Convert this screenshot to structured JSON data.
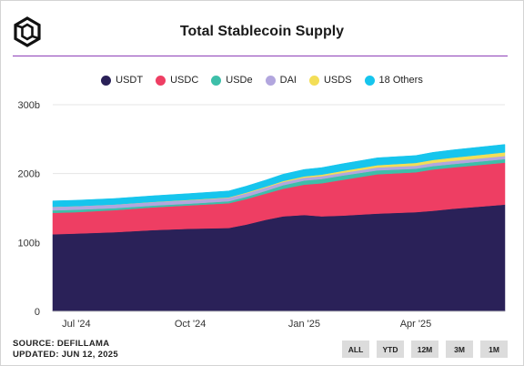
{
  "header": {
    "title": "Total Stablecoin Supply"
  },
  "footer": {
    "source": "SOURCE: DEFILLAMA",
    "updated": "UPDATED: JUN 12, 2025"
  },
  "range_buttons": [
    "ALL",
    "YTD",
    "12M",
    "3M",
    "1M"
  ],
  "chart_data": {
    "type": "area",
    "stacked": true,
    "title": "Total Stablecoin Supply",
    "y_unit": "billions USD",
    "ylim": [
      0,
      300
    ],
    "y_ticks": [
      0,
      100,
      200,
      300
    ],
    "y_tick_labels": [
      "0",
      "100b",
      "200b",
      "300b"
    ],
    "x_range": [
      "2024-06-12",
      "2025-06-12"
    ],
    "x_ticks": [
      {
        "label": "Jul '24",
        "date": "2024-07-01"
      },
      {
        "label": "Oct '24",
        "date": "2024-10-01"
      },
      {
        "label": "Jan '25",
        "date": "2025-01-01"
      },
      {
        "label": "Apr '25",
        "date": "2025-04-01"
      }
    ],
    "x": [
      "2024-06-12",
      "2024-07-01",
      "2024-08-01",
      "2024-09-01",
      "2024-10-01",
      "2024-11-01",
      "2024-11-15",
      "2024-12-01",
      "2024-12-15",
      "2025-01-01",
      "2025-01-15",
      "2025-02-01",
      "2025-03-01",
      "2025-04-01",
      "2025-04-15",
      "2025-05-01",
      "2025-06-12"
    ],
    "series": [
      {
        "name": "USDT",
        "color": "#2a2158",
        "values": [
          112,
          113,
          115,
          118,
          120,
          121,
          126,
          133,
          138,
          140,
          138,
          139,
          142,
          144,
          146,
          149,
          155
        ]
      },
      {
        "name": "USDC",
        "color": "#ee3e63",
        "values": [
          31,
          31,
          32,
          33,
          34,
          36,
          37,
          38,
          40,
          44,
          48,
          52,
          57,
          58,
          60,
          60,
          61
        ]
      },
      {
        "name": "USDe",
        "color": "#3dbfa9",
        "values": [
          3.7,
          3.6,
          2.9,
          2.6,
          2.5,
          2.9,
          3.3,
          4.0,
          5.2,
          5.9,
          6.1,
          6.2,
          5.7,
          5.1,
          4.9,
          4.8,
          5.1
        ]
      },
      {
        "name": "DAI",
        "color": "#b2a6de",
        "values": [
          5.2,
          5.2,
          5.2,
          5.1,
          5.0,
          5.0,
          5.0,
          4.9,
          4.6,
          4.3,
          4.1,
          3.9,
          4.2,
          4.4,
          4.6,
          4.6,
          4.5
        ]
      },
      {
        "name": "USDS",
        "color": "#f3de57",
        "values": [
          0,
          0,
          0,
          0.3,
          0.5,
          0.7,
          1.0,
          1.2,
          1.5,
          1.8,
          2.3,
          2.8,
          3.4,
          4.0,
          4.4,
          4.8,
          5.3
        ]
      },
      {
        "name": "18 Others",
        "color": "#16c5ed",
        "values": [
          8.5,
          8.6,
          8.8,
          8.9,
          9.1,
          9.2,
          9.4,
          9.6,
          9.8,
          10.0,
          10.2,
          10.4,
          10.6,
          10.8,
          11.0,
          11.2,
          11.5
        ]
      }
    ],
    "legend_position": "top-center",
    "grid": "horizontal"
  }
}
